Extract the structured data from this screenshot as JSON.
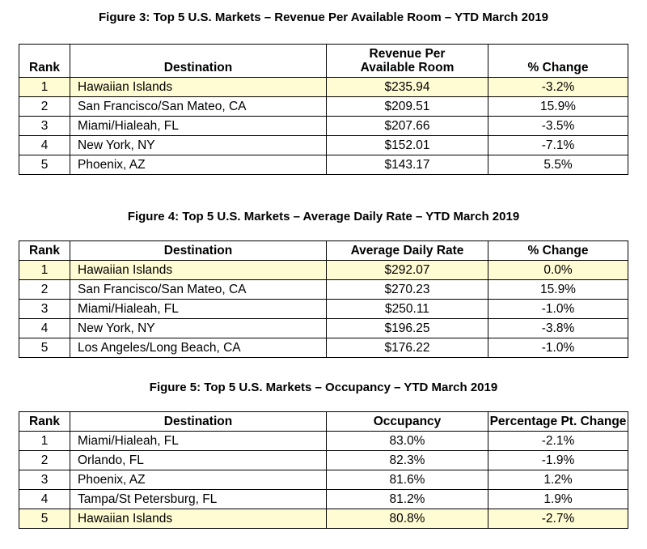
{
  "headers": {
    "rank": "Rank",
    "destination": "Destination",
    "change": "% Change",
    "pct_pt_change": "Percentage Pt. Change"
  },
  "figure3": {
    "title": "Figure 3: Top 5 U.S. Markets – Revenue Per Available Room – YTD March 2019",
    "metric_header": "Revenue Per Available Room",
    "rows": [
      {
        "rank": "1",
        "destination": "Hawaiian Islands",
        "value": "$235.94",
        "change": "-3.2%",
        "highlight": true
      },
      {
        "rank": "2",
        "destination": "San Francisco/San Mateo, CA",
        "value": "$209.51",
        "change": "15.9%",
        "highlight": false
      },
      {
        "rank": "3",
        "destination": "Miami/Hialeah, FL",
        "value": "$207.66",
        "change": "-3.5%",
        "highlight": false
      },
      {
        "rank": "4",
        "destination": "New York, NY",
        "value": "$152.01",
        "change": "-7.1%",
        "highlight": false
      },
      {
        "rank": "5",
        "destination": "Phoenix, AZ",
        "value": "$143.17",
        "change": "5.5%",
        "highlight": false
      }
    ]
  },
  "figure4": {
    "title": "Figure 4: Top 5 U.S. Markets – Average Daily Rate – YTD March 2019",
    "metric_header": "Average Daily Rate",
    "rows": [
      {
        "rank": "1",
        "destination": "Hawaiian Islands",
        "value": "$292.07",
        "change": "0.0%",
        "highlight": true
      },
      {
        "rank": "2",
        "destination": "San Francisco/San Mateo, CA",
        "value": "$270.23",
        "change": "15.9%",
        "highlight": false
      },
      {
        "rank": "3",
        "destination": "Miami/Hialeah, FL",
        "value": "$250.11",
        "change": "-1.0%",
        "highlight": false
      },
      {
        "rank": "4",
        "destination": "New York, NY",
        "value": "$196.25",
        "change": "-3.8%",
        "highlight": false
      },
      {
        "rank": "5",
        "destination": "Los Angeles/Long Beach, CA",
        "value": "$176.22",
        "change": "-1.0%",
        "highlight": false
      }
    ]
  },
  "figure5": {
    "title": "Figure 5: Top 5 U.S. Markets – Occupancy – YTD March 2019",
    "metric_header": "Occupancy",
    "rows": [
      {
        "rank": "1",
        "destination": "Miami/Hialeah, FL",
        "value": "83.0%",
        "change": "-2.1%",
        "highlight": false
      },
      {
        "rank": "2",
        "destination": "Orlando, FL",
        "value": "82.3%",
        "change": "-1.9%",
        "highlight": false
      },
      {
        "rank": "3",
        "destination": "Phoenix, AZ",
        "value": "81.6%",
        "change": "1.2%",
        "highlight": false
      },
      {
        "rank": "4",
        "destination": "Tampa/St Petersburg, FL",
        "value": "81.2%",
        "change": "1.9%",
        "highlight": false
      },
      {
        "rank": "5",
        "destination": "Hawaiian Islands",
        "value": "80.8%",
        "change": "-2.7%",
        "highlight": true
      }
    ]
  }
}
